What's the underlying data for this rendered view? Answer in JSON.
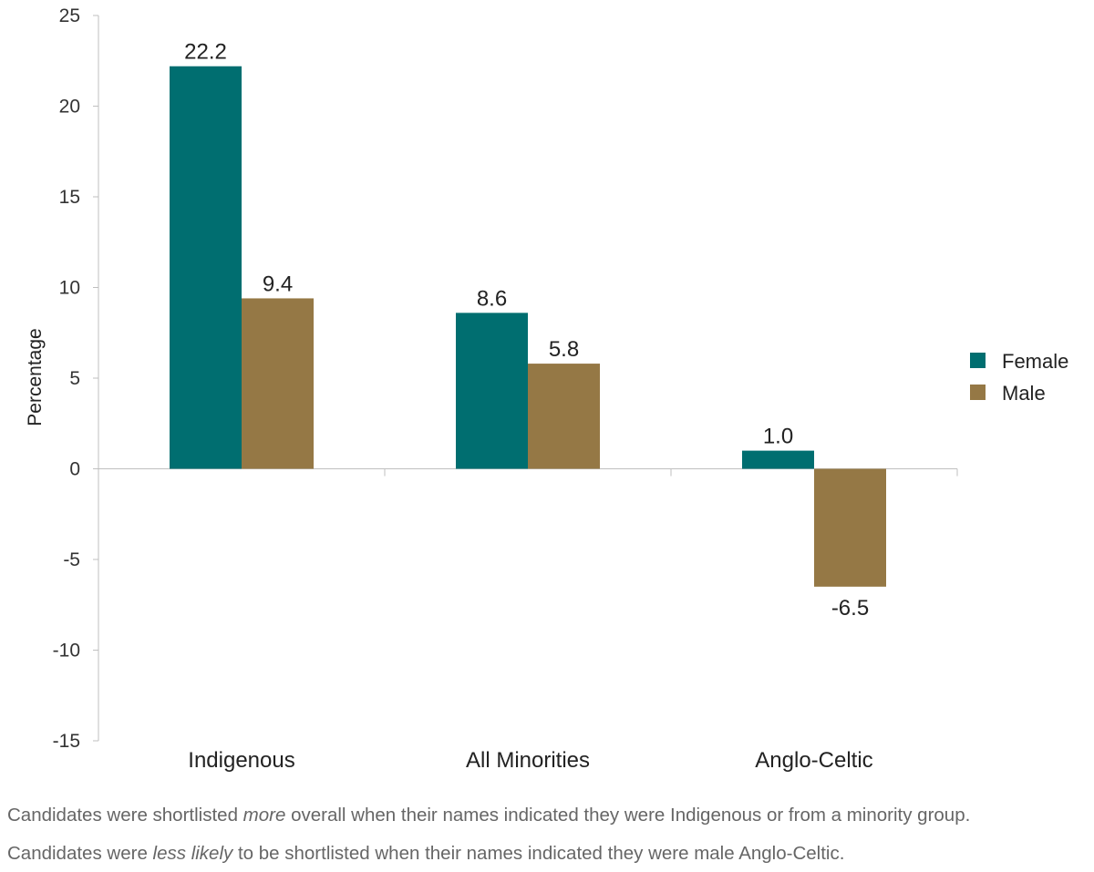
{
  "chart_data": {
    "type": "bar",
    "categories": [
      "Indigenous",
      "All Minorities",
      "Anglo-Celtic"
    ],
    "series": [
      {
        "name": "Female",
        "values": [
          22.2,
          8.6,
          1.0
        ],
        "labels": [
          "22.2",
          "8.6",
          "1.0"
        ],
        "color": "#006e70"
      },
      {
        "name": "Male",
        "values": [
          9.4,
          5.8,
          -6.5
        ],
        "labels": [
          "9.4",
          "5.8",
          "-6.5"
        ],
        "color": "#957845"
      }
    ],
    "ylabel": "Percentage",
    "xlabel": "",
    "ylim": [
      -15,
      25
    ],
    "yticks": [
      25,
      20,
      15,
      10,
      5,
      0,
      -5,
      -10,
      -15
    ],
    "grid": false,
    "legend_position": "right"
  },
  "caption": {
    "line1": {
      "before": "Candidates were shortlisted ",
      "emphasis": "more",
      "after": " overall when their names indicated they were Indigenous or from a minority group."
    },
    "line2": {
      "before": "Candidates were ",
      "emphasis": "less likely",
      "after": " to be shortlisted when their names indicated they were male Anglo-Celtic."
    }
  }
}
